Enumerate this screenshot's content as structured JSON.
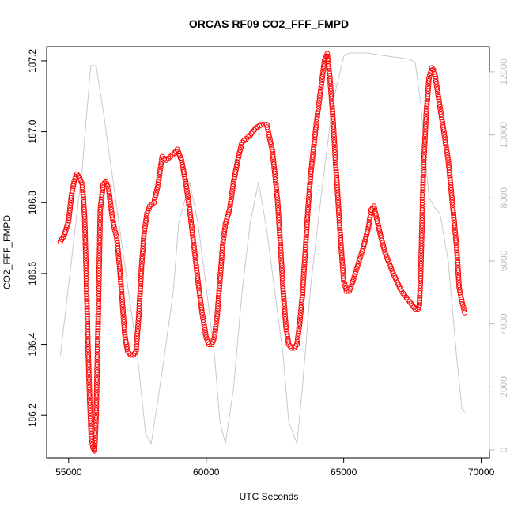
{
  "chart_data": {
    "type": "scatter",
    "title": "ORCAS RF09 CO2_FFF_FMPD",
    "xlabel": "UTC Seconds",
    "ylabel": "CO2_FFF_FMPD",
    "xlim": [
      54200,
      70300
    ],
    "ylim": [
      186.08,
      187.24
    ],
    "x_ticks": [
      55000,
      60000,
      65000,
      70000
    ],
    "y_ticks": [
      186.2,
      186.4,
      186.6,
      186.8,
      187.0,
      187.2
    ],
    "y2lim": [
      -250,
      12800
    ],
    "y2_ticks": [
      0,
      2000,
      4000,
      6000,
      8000,
      10000,
      12000
    ],
    "colors": {
      "points": "#ff0000",
      "secondary_line": "#c8c8c8",
      "right_axis": "#bdbdbd"
    },
    "series": [
      {
        "type": "scatter",
        "x": [
          54700,
          54850,
          55000,
          55100,
          55200,
          55300,
          55400,
          55500,
          55580,
          55640,
          55700,
          55760,
          55820,
          55880,
          55940,
          56000,
          56080,
          56150,
          56250,
          56350,
          56450,
          56550,
          56650,
          56750,
          56850,
          56950,
          57050,
          57150,
          57250,
          57350,
          57450,
          57550,
          57650,
          57750,
          57850,
          57950,
          58100,
          58250,
          58400,
          58550,
          58700,
          58850,
          58950,
          59100,
          59250,
          59400,
          59550,
          59700,
          59850,
          60000,
          60100,
          60200,
          60300,
          60400,
          60500,
          60600,
          60700,
          60850,
          61000,
          61150,
          61300,
          61450,
          61600,
          61800,
          62000,
          62200,
          62400,
          62500,
          62600,
          62700,
          62800,
          62900,
          63000,
          63100,
          63200,
          63300,
          63400,
          63500,
          63600,
          63700,
          63800,
          63900,
          64000,
          64100,
          64200,
          64300,
          64400,
          64500,
          64600,
          64700,
          64800,
          64900,
          65000,
          65100,
          65200,
          65300,
          65500,
          65700,
          65900,
          66000,
          66100,
          66300,
          66500,
          66800,
          67100,
          67400,
          67600,
          67700,
          67750,
          67800,
          67850,
          67900,
          68000,
          68100,
          68200,
          68300,
          68400,
          68600,
          68800,
          68950,
          69100,
          69200,
          69300,
          69400
        ],
        "y": [
          186.69,
          186.71,
          186.75,
          186.82,
          186.86,
          186.88,
          186.87,
          186.85,
          186.76,
          186.6,
          186.4,
          186.25,
          186.14,
          186.11,
          186.1,
          186.2,
          186.5,
          186.78,
          186.85,
          186.86,
          186.84,
          186.78,
          186.73,
          186.7,
          186.62,
          186.52,
          186.42,
          186.38,
          186.37,
          186.37,
          186.38,
          186.48,
          186.62,
          186.72,
          186.77,
          186.79,
          186.8,
          186.85,
          186.93,
          186.92,
          186.93,
          186.94,
          186.95,
          186.92,
          186.86,
          186.78,
          186.68,
          186.58,
          186.49,
          186.42,
          186.4,
          186.4,
          186.42,
          186.48,
          186.58,
          186.68,
          186.74,
          186.78,
          186.86,
          186.92,
          186.97,
          186.98,
          186.99,
          187.01,
          187.02,
          187.02,
          186.95,
          186.88,
          186.8,
          186.68,
          186.55,
          186.45,
          186.4,
          186.39,
          186.39,
          186.4,
          186.46,
          186.54,
          186.66,
          186.78,
          186.88,
          186.95,
          187.02,
          187.08,
          187.14,
          187.2,
          187.22,
          187.15,
          187.05,
          186.92,
          186.8,
          186.68,
          186.58,
          186.55,
          186.55,
          186.57,
          186.62,
          186.67,
          186.73,
          186.78,
          186.79,
          186.72,
          186.66,
          186.6,
          186.55,
          186.52,
          186.5,
          186.5,
          186.51,
          186.6,
          186.75,
          186.9,
          187.05,
          187.15,
          187.18,
          187.17,
          187.12,
          187.02,
          186.92,
          186.8,
          186.68,
          186.56,
          186.52,
          186.49
        ]
      },
      {
        "type": "line",
        "axis": "right",
        "x": [
          54700,
          55100,
          55500,
          55800,
          56000,
          56300,
          56700,
          57100,
          57500,
          57800,
          58000,
          58400,
          58800,
          59000,
          59400,
          59700,
          60000,
          60300,
          60500,
          60700,
          61000,
          61300,
          61600,
          61900,
          62200,
          62500,
          62800,
          63000,
          63300,
          63500,
          63800,
          64200,
          64600,
          65000,
          65200,
          65600,
          65900,
          66200,
          66600,
          67000,
          67400,
          67600,
          67800,
          67950,
          68100,
          68300,
          68500,
          68800,
          69100,
          69300,
          69400
        ],
        "y": [
          3000,
          6000,
          9000,
          12200,
          12200,
          10500,
          8000,
          5500,
          3000,
          500,
          200,
          2500,
          5000,
          7200,
          8500,
          7200,
          5200,
          3000,
          900,
          200,
          2000,
          5000,
          7200,
          8500,
          7000,
          5000,
          3000,
          900,
          200,
          2000,
          5200,
          8200,
          11000,
          12500,
          12600,
          12600,
          12600,
          12550,
          12500,
          12450,
          12400,
          12300,
          11000,
          9500,
          8000,
          7700,
          7500,
          6000,
          3000,
          1300,
          1200
        ]
      }
    ]
  }
}
